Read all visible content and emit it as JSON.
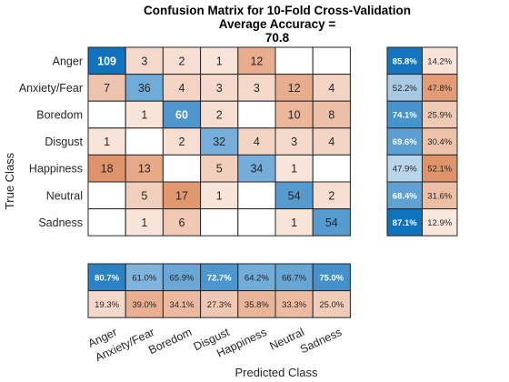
{
  "chart_data": {
    "type": "heatmap",
    "title": [
      "Confusion Matrix for 10-Fold Cross-Validation",
      "Average Accuracy =",
      "70.8"
    ],
    "xlabel": "Predicted Class",
    "ylabel": "True Class",
    "classes": [
      "Anger",
      "Anxiety/Fear",
      "Boredom",
      "Disgust",
      "Happiness",
      "Neutral",
      "Sadness"
    ],
    "matrix": [
      [
        109,
        3,
        2,
        1,
        12,
        null,
        null
      ],
      [
        7,
        36,
        4,
        3,
        3,
        12,
        4
      ],
      [
        null,
        1,
        60,
        2,
        null,
        10,
        8
      ],
      [
        1,
        null,
        2,
        32,
        4,
        3,
        4
      ],
      [
        18,
        13,
        null,
        5,
        34,
        1,
        null
      ],
      [
        null,
        5,
        17,
        1,
        null,
        54,
        2
      ],
      [
        null,
        1,
        6,
        null,
        null,
        1,
        54
      ]
    ],
    "row_summary": {
      "correct": [
        "85.8%",
        "52.2%",
        "74.1%",
        "69.6%",
        "47.9%",
        "68.4%",
        "87.1%"
      ],
      "incorrect": [
        "14.2%",
        "47.8%",
        "25.9%",
        "30.4%",
        "52.1%",
        "31.6%",
        "12.9%"
      ]
    },
    "column_summary": {
      "correct": [
        "80.7%",
        "61.0%",
        "65.9%",
        "72.7%",
        "64.2%",
        "66.7%",
        "75.0%"
      ],
      "incorrect": [
        "19.3%",
        "39.0%",
        "34.1%",
        "27.3%",
        "35.8%",
        "33.3%",
        "25.0%"
      ]
    }
  },
  "colors": {
    "diagonal_low": "#c5dcef",
    "diagonal_high": "#0f72bd",
    "offdiag_low": "#fbece5",
    "offdiag_high": "#e0936a",
    "border": "#262626"
  }
}
